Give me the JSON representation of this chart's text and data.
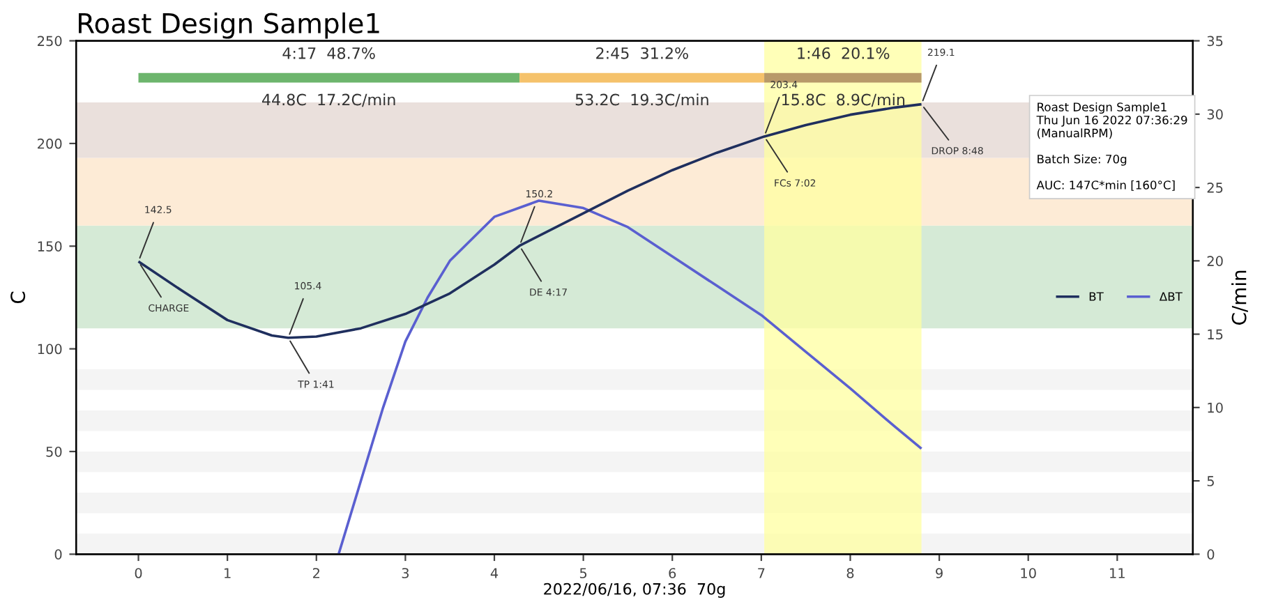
{
  "chart_data": {
    "type": "line",
    "title": "Roast Design Sample1",
    "xlabel": "2022/06/16, 07:36  70g",
    "ylabel": "C",
    "y2label": "C/min",
    "xlim": [
      -0.7,
      11.85
    ],
    "xticks": [
      0,
      1,
      2,
      3,
      4,
      5,
      6,
      7,
      8,
      9,
      10,
      11
    ],
    "ylim": [
      0,
      250
    ],
    "yticks": [
      0,
      50,
      100,
      150,
      200,
      250
    ],
    "y2lim": [
      0,
      35
    ],
    "y2ticks": [
      0,
      5,
      10,
      15,
      20,
      25,
      30,
      35
    ],
    "grid": false,
    "legend": "center right",
    "line_style": "solid",
    "marker": "none",
    "series": [
      {
        "name": "BT",
        "color": "#1f2f5e",
        "x": [
          0,
          0.5,
          1,
          1.5,
          1.683,
          2,
          2.5,
          3,
          3.5,
          4,
          4.283,
          5,
          5.5,
          6,
          6.5,
          7.033,
          7.5,
          8,
          8.5,
          8.8
        ],
        "values": [
          142.5,
          128,
          114,
          106.5,
          105.4,
          106,
          110,
          117,
          127,
          141,
          150.2,
          166,
          177,
          187,
          195.5,
          203.4,
          209,
          214,
          217.5,
          219.1
        ]
      },
      {
        "name": "ΔBT",
        "color": "#5a5fd0",
        "axis": "y2",
        "x": [
          2.25,
          2.5,
          2.75,
          3,
          3.25,
          3.5,
          4,
          4.5,
          5,
          5.5,
          6,
          6.5,
          7,
          7.5,
          8,
          8.5,
          8.8
        ],
        "values": [
          0,
          5,
          10,
          14.5,
          17.5,
          20,
          23,
          24.1,
          23.6,
          22.3,
          20.3,
          18.3,
          16.3,
          13.8,
          11.3,
          8.7,
          7.2
        ]
      },
      {
        "color": "#6db56d",
        "x": [
          0,
          4.283
        ],
        "values": [
          232,
          232
        ]
      },
      {
        "color": "#f5c26b",
        "x": [
          4.283,
          7.033
        ],
        "values": [
          232,
          232
        ]
      },
      {
        "color": "#b89a6a",
        "x": [
          7.033,
          8.8
        ],
        "values": [
          232,
          232
        ]
      }
    ],
    "bands": [
      {
        "axis": "y",
        "from": 0,
        "to": 10,
        "color": "#f4f4f4"
      },
      {
        "axis": "y",
        "from": 20,
        "to": 30,
        "color": "#f4f4f4"
      },
      {
        "axis": "y",
        "from": 40,
        "to": 50,
        "color": "#f4f4f4"
      },
      {
        "axis": "y",
        "from": 60,
        "to": 70,
        "color": "#f4f4f4"
      },
      {
        "axis": "y",
        "from": 80,
        "to": 90,
        "color": "#f4f4f4"
      },
      {
        "axis": "y",
        "from": 110,
        "to": 160,
        "color": "#d5ead6"
      },
      {
        "axis": "y",
        "from": 160,
        "to": 193,
        "color": "#fdebd6"
      },
      {
        "axis": "y",
        "from": 193,
        "to": 220,
        "color": "#eae0dc"
      },
      {
        "axis": "x",
        "from": 7.033,
        "to": 8.8,
        "color": "#ffffa0"
      }
    ],
    "annotations": [
      {
        "text": "142.5",
        "x": 0,
        "y": 142.5
      },
      {
        "text": "CHARGE",
        "x": 0,
        "y": 142.5
      },
      {
        "text": "105.4",
        "x": 1.683,
        "y": 105.4
      },
      {
        "text": "TP 1:41",
        "x": 1.683,
        "y": 105.4
      },
      {
        "text": "150.2",
        "x": 4.283,
        "y": 150.2
      },
      {
        "text": "DE 4:17",
        "x": 4.283,
        "y": 150.2
      },
      {
        "text": "203.4",
        "x": 7.033,
        "y": 203.4
      },
      {
        "text": "FCs 7:02",
        "x": 7.033,
        "y": 203.4
      },
      {
        "text": "219.1",
        "x": 8.8,
        "y": 219.1
      },
      {
        "text": "DROP 8:48",
        "x": 8.8,
        "y": 219.1
      },
      {
        "text": "4:17  48.7%",
        "x": 2.14,
        "y": 232
      },
      {
        "text": "44.8C  17.2C/min",
        "x": 2.14,
        "y": 232
      },
      {
        "text": "2:45  31.2%",
        "x": 5.66,
        "y": 232
      },
      {
        "text": "53.2C  19.3C/min",
        "x": 5.66,
        "y": 232
      },
      {
        "text": "1:46  20.1%",
        "x": 7.92,
        "y": 232
      },
      {
        "text": "15.8C  8.9C/min",
        "x": 7.92,
        "y": 232
      },
      "Roast Design Sample1\nThu Jun 16 2022 07:36:29\n(ManualRPM)\n\nBatch Size: 70g\n\nAUC: 147C*min [160°C]"
    ]
  }
}
